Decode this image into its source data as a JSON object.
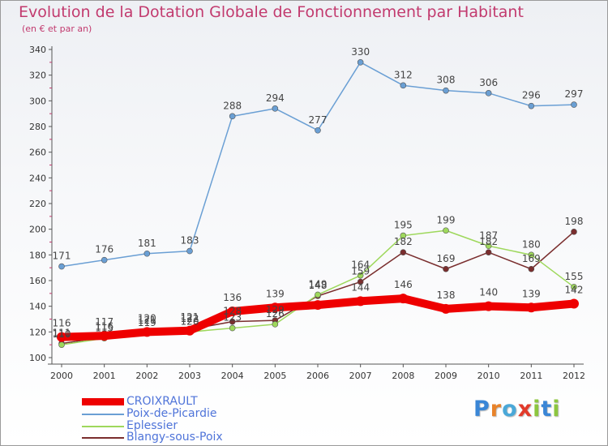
{
  "title": "Evolution de la Dotation Globale de Fonctionnement par Habitant",
  "subtitle": "(en € et par an)",
  "brand": {
    "text": "Proxiti",
    "letters": [
      "P",
      "r",
      "o",
      "x",
      "i",
      "t",
      "i"
    ],
    "letter_colors": [
      "#3a86d6",
      "#e8832a",
      "#4aa8d8",
      "#e23a2a",
      "#8cc63f",
      "#3a86d6",
      "#8cc63f"
    ]
  },
  "chart_data": {
    "type": "line",
    "x": [
      2000,
      2001,
      2002,
      2003,
      2004,
      2005,
      2006,
      2007,
      2008,
      2009,
      2010,
      2011,
      2012
    ],
    "ylim": [
      100,
      340
    ],
    "yticks": [
      100,
      120,
      140,
      160,
      180,
      200,
      220,
      240,
      260,
      280,
      300,
      320,
      340
    ],
    "grid": false,
    "legend_placement": "bottom-left",
    "series": [
      {
        "name": "CROIXRAULT",
        "color": "#ee0000",
        "values": [
          116,
          117,
          120,
          121,
          136,
          139,
          141,
          144,
          146,
          138,
          140,
          139,
          142
        ],
        "labels": [
          "116",
          "117",
          "120",
          "121",
          "136",
          "139",
          "",
          "144",
          "146",
          "138",
          "140",
          "139",
          "142"
        ]
      },
      {
        "name": "Poix-de-Picardie",
        "color": "#6a9fd4",
        "values": [
          171,
          176,
          181,
          183,
          288,
          294,
          277,
          330,
          312,
          308,
          306,
          296,
          297
        ],
        "labels": [
          "171",
          "176",
          "181",
          "183",
          "288",
          "294",
          "277",
          "330",
          "312",
          "308",
          "306",
          "296",
          "297"
        ]
      },
      {
        "name": "Eplessier",
        "color": "#9ed85c",
        "values": [
          110,
          115,
          119,
          120,
          123,
          126,
          149,
          164,
          195,
          199,
          187,
          180,
          155
        ],
        "labels": [
          "110",
          "115",
          "119",
          "120",
          "123",
          "126",
          "149",
          "164",
          "195",
          "199",
          "187",
          "180",
          "155"
        ]
      },
      {
        "name": "Blangy-sous-Poix",
        "color": "#7a2e2e",
        "values": [
          111,
          116,
          121,
          122,
          128,
          129,
          148,
          159,
          182,
          169,
          182,
          169,
          198
        ],
        "labels": [
          "111",
          "116",
          "121",
          "122",
          "128",
          "129",
          "148",
          "159",
          "182",
          "169",
          "182",
          "169",
          "198"
        ]
      }
    ]
  }
}
